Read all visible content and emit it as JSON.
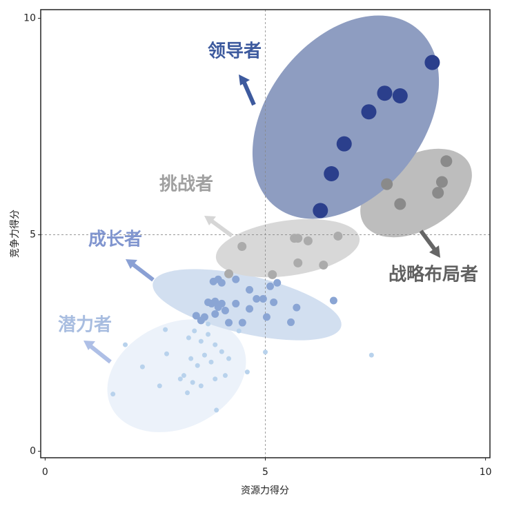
{
  "chart_data": {
    "type": "scatter",
    "x_label": "资源力得分",
    "y_label": "竞争力得分",
    "xlim": [
      -0.1,
      10.1
    ],
    "ylim": [
      -0.15,
      10.2
    ],
    "xticks": [
      0,
      5,
      10
    ],
    "yticks": [
      0,
      5,
      10
    ],
    "reference_lines": {
      "x": 5,
      "y": 5
    },
    "series": [
      {
        "name": "领导者",
        "color": "#2b3f8c",
        "size": 11,
        "x": [
          8.79,
          7.71,
          8.06,
          7.35,
          6.79,
          6.5,
          6.25
        ],
        "values": [
          8.98,
          8.27,
          8.21,
          7.84,
          7.1,
          6.41,
          5.56
        ]
      },
      {
        "name": "战略布局者",
        "color": "#8a8a8a",
        "size": 8.5,
        "x": [
          9.11,
          7.76,
          9.01,
          8.92,
          8.06
        ],
        "values": [
          6.7,
          6.17,
          6.22,
          5.97,
          5.71
        ]
      },
      {
        "name": "挑战者",
        "color": "#ababab",
        "size": 6.5,
        "x": [
          4.47,
          5.66,
          5.74,
          5.97,
          6.65,
          5.74,
          6.32,
          5.16,
          4.17
        ],
        "values": [
          4.73,
          4.92,
          4.92,
          4.86,
          4.97,
          4.35,
          4.3,
          4.08,
          4.1
        ]
      },
      {
        "name": "成长者",
        "color": "#8aa5d4",
        "size": 5.5,
        "x": [
          3.82,
          3.93,
          4.01,
          4.33,
          4.64,
          4.95,
          5.11,
          5.27,
          5.19,
          4.8,
          5.71,
          6.55,
          3.7,
          3.78,
          3.86,
          3.93,
          4.01,
          4.09,
          4.33,
          4.64,
          5.03,
          5.58,
          4.17,
          4.48,
          3.62,
          3.54,
          3.43,
          3.86
        ],
        "values": [
          3.92,
          3.97,
          3.89,
          3.97,
          3.73,
          3.52,
          3.81,
          3.89,
          3.44,
          3.52,
          3.32,
          3.48,
          3.44,
          3.41,
          3.46,
          3.33,
          3.41,
          3.25,
          3.41,
          3.29,
          3.1,
          2.98,
          2.97,
          2.97,
          3.1,
          3.02,
          3.13,
          3.17
        ]
      },
      {
        "name": "潜力者",
        "color": "#b8d2ec",
        "size": 3.5,
        "x": [
          1.82,
          5.0,
          7.41,
          2.73,
          4.59,
          1.54,
          2.21,
          3.26,
          3.39,
          3.54,
          3.7,
          3.86,
          3.31,
          3.46,
          3.62,
          3.77,
          4.01,
          4.17,
          3.15,
          3.35,
          3.54,
          3.23,
          3.86,
          4.09,
          2.76,
          2.6,
          3.89,
          3.07,
          4.4,
          3.7
        ],
        "values": [
          2.46,
          2.29,
          2.22,
          2.81,
          1.83,
          1.32,
          1.95,
          2.62,
          2.78,
          2.54,
          2.7,
          2.46,
          2.14,
          1.98,
          2.22,
          2.06,
          2.3,
          2.14,
          1.75,
          1.59,
          1.51,
          1.35,
          1.67,
          1.75,
          2.25,
          1.51,
          0.95,
          1.67,
          2.78,
          2.94
        ]
      }
    ]
  }
}
